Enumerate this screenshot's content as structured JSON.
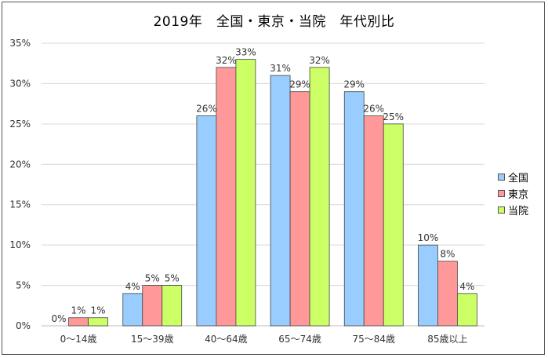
{
  "chart_data": {
    "type": "bar",
    "title": "2019年　全国・東京・当院　年代別比",
    "xlabel": "",
    "ylabel": "",
    "categories": [
      "0～14歳",
      "15～39歳",
      "40～64歳",
      "65～74歳",
      "75～84歳",
      "85歳以上"
    ],
    "series": [
      {
        "name": "全国",
        "values": [
          0,
          4,
          26,
          31,
          29,
          10
        ],
        "labels": [
          "0%",
          "4%",
          "26%",
          "31%",
          "29%",
          "10%"
        ],
        "color": "#99CCFF"
      },
      {
        "name": "東京",
        "values": [
          1,
          5,
          32,
          29,
          26,
          8
        ],
        "labels": [
          "1%",
          "5%",
          "32%",
          "29%",
          "26%",
          "8%"
        ],
        "color": "#FF9999"
      },
      {
        "name": "当院",
        "values": [
          1,
          5,
          33,
          32,
          25,
          4
        ],
        "labels": [
          "1%",
          "5%",
          "33%",
          "32%",
          "25%",
          "4%"
        ],
        "color": "#CCFF66"
      }
    ],
    "ylim": [
      0,
      35
    ],
    "yticks": [
      "0%",
      "5%",
      "10%",
      "15%",
      "20%",
      "25%",
      "30%",
      "35%"
    ],
    "grid": true,
    "legend_position": "right"
  }
}
